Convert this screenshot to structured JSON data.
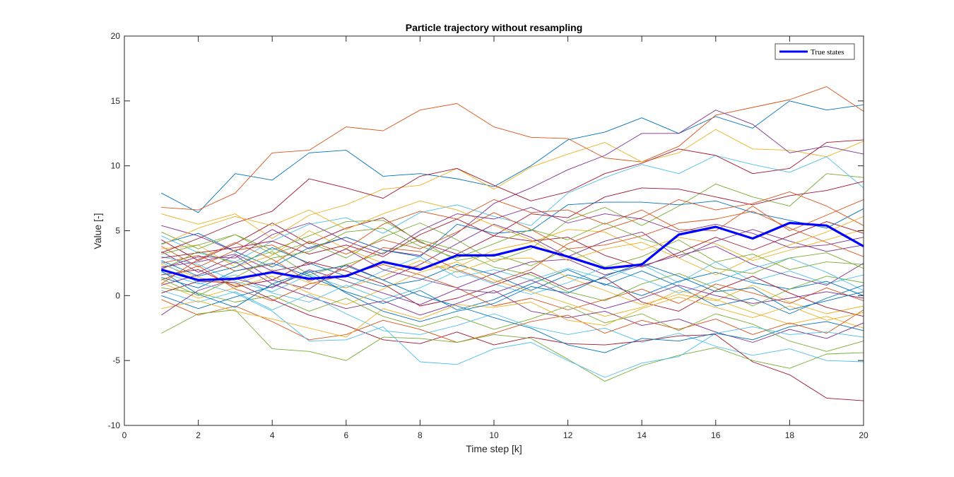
{
  "chart_data": {
    "type": "line",
    "title": "Particle trajectory without resampling",
    "xlabel": "Time step [k]",
    "ylabel": "Value [-]",
    "xlim": [
      0,
      20
    ],
    "ylim": [
      -10,
      20
    ],
    "xticks": [
      0,
      2,
      4,
      6,
      8,
      10,
      12,
      14,
      16,
      18,
      20
    ],
    "yticks": [
      -10,
      -5,
      0,
      5,
      10,
      15,
      20
    ],
    "grid": false,
    "legend_position": "top-right",
    "x": [
      1,
      2,
      3,
      4,
      5,
      6,
      7,
      8,
      9,
      10,
      11,
      12,
      13,
      14,
      15,
      16,
      17,
      18,
      19,
      20
    ],
    "highlight_series": {
      "name": "True states",
      "color": "#0000ff",
      "values": [
        2.0,
        1.2,
        1.3,
        1.8,
        1.3,
        1.5,
        2.6,
        2.0,
        3.1,
        3.1,
        3.8,
        3.0,
        2.1,
        2.4,
        4.7,
        5.3,
        4.4,
        5.6,
        5.4,
        3.8
      ]
    },
    "particle_colors": [
      "#0072bd",
      "#d95319",
      "#edb120",
      "#7e2f8e",
      "#77ac30",
      "#4dbeee",
      "#a2142f"
    ],
    "particles": [
      [
        7.9,
        6.4,
        9.4,
        8.9,
        11.0,
        11.2,
        9.2,
        9.4,
        9.0,
        8.4,
        10.0,
        12.0,
        12.6,
        13.7,
        12.5,
        13.8,
        12.9,
        15.0,
        14.3,
        14.7
      ],
      [
        6.8,
        6.6,
        7.9,
        11.0,
        11.2,
        13.0,
        12.7,
        14.3,
        14.8,
        13.0,
        12.2,
        12.1,
        10.6,
        10.3,
        11.5,
        13.9,
        14.5,
        15.1,
        16.1,
        14.2
      ],
      [
        6.3,
        5.5,
        6.3,
        4.4,
        6.2,
        7.0,
        8.2,
        8.5,
        9.8,
        8.2,
        9.9,
        10.9,
        11.8,
        10.3,
        11.0,
        12.8,
        11.3,
        11.2,
        10.7,
        11.9
      ],
      [
        5.4,
        4.6,
        3.4,
        5.1,
        3.6,
        4.5,
        3.5,
        3.1,
        4.8,
        7.1,
        8.3,
        9.7,
        10.8,
        12.5,
        12.5,
        14.3,
        13.2,
        11.0,
        11.5,
        10.9
      ],
      [
        4.9,
        3.6,
        4.7,
        3.2,
        4.1,
        2.9,
        4.5,
        5.6,
        4.3,
        2.6,
        3.6,
        5.8,
        6.8,
        5.4,
        6.9,
        8.6,
        7.6,
        6.9,
        9.4,
        9.1
      ],
      [
        4.6,
        3.3,
        2.6,
        4.2,
        5.5,
        6.0,
        4.8,
        6.4,
        7.0,
        6.1,
        5.4,
        7.9,
        9.1,
        10.1,
        9.4,
        10.8,
        10.1,
        9.5,
        10.7,
        8.3
      ],
      [
        4.3,
        2.7,
        4.0,
        5.6,
        4.0,
        5.2,
        6.0,
        4.1,
        3.2,
        4.6,
        6.3,
        6.0,
        7.6,
        8.3,
        8.2,
        7.6,
        7.0,
        7.7,
        8.1,
        8.8
      ],
      [
        4.0,
        4.8,
        3.4,
        2.2,
        3.7,
        4.5,
        3.5,
        3.0,
        5.5,
        4.8,
        5.0,
        7.0,
        7.2,
        7.2,
        7.0,
        7.3,
        6.4,
        5.8,
        5.2,
        6.7
      ],
      [
        3.8,
        2.2,
        3.5,
        3.9,
        2.4,
        3.6,
        5.5,
        6.5,
        5.9,
        7.4,
        6.4,
        6.6,
        5.5,
        6.6,
        5.1,
        5.0,
        6.9,
        5.0,
        6.2,
        7.4
      ],
      [
        3.6,
        3.9,
        2.2,
        3.1,
        5.0,
        3.6,
        2.5,
        2.2,
        2.2,
        3.5,
        4.1,
        5.1,
        4.9,
        3.5,
        4.5,
        4.0,
        2.7,
        3.5,
        4.3,
        5.1
      ],
      [
        3.4,
        1.8,
        3.1,
        1.2,
        0.5,
        2.4,
        1.2,
        2.4,
        4.0,
        5.5,
        4.5,
        3.0,
        4.2,
        4.9,
        2.9,
        4.2,
        5.1,
        4.2,
        3.4,
        3.9
      ],
      [
        3.2,
        3.9,
        4.7,
        3.5,
        4.6,
        5.7,
        5.8,
        4.2,
        2.7,
        3.2,
        2.3,
        3.6,
        2.2,
        3.0,
        4.3,
        2.6,
        3.2,
        2.0,
        2.6,
        2.4
      ],
      [
        3.0,
        2.4,
        1.1,
        0.3,
        1.6,
        0.6,
        1.9,
        3.0,
        1.4,
        2.0,
        1.2,
        2.1,
        1.3,
        2.4,
        1.0,
        2.6,
        1.1,
        1.9,
        0.9,
        1.6
      ],
      [
        2.9,
        3.3,
        3.7,
        4.2,
        3.2,
        3.9,
        3.0,
        4.7,
        5.9,
        4.6,
        4.2,
        4.5,
        3.1,
        2.2,
        3.3,
        4.5,
        3.5,
        4.6,
        5.7,
        4.8
      ],
      [
        2.7,
        1.5,
        2.2,
        3.7,
        2.5,
        1.5,
        0.7,
        1.2,
        2.4,
        1.6,
        0.4,
        1.6,
        0.9,
        0.0,
        1.1,
        1.8,
        1.0,
        0.5,
        1.1,
        0.0
      ],
      [
        2.5,
        3.1,
        1.9,
        2.4,
        4.2,
        3.2,
        4.3,
        3.6,
        4.9,
        6.4,
        5.1,
        3.6,
        3.9,
        4.6,
        5.6,
        5.9,
        6.5,
        5.2,
        4.1,
        3.0
      ],
      [
        2.4,
        1.4,
        0.8,
        2.0,
        1.0,
        0.6,
        1.5,
        2.7,
        1.8,
        2.8,
        2.9,
        1.4,
        0.4,
        -0.7,
        0.1,
        -0.4,
        0.8,
        -0.5,
        -1.4,
        -0.8
      ],
      [
        2.2,
        2.6,
        3.2,
        1.9,
        2.4,
        3.6,
        2.0,
        1.3,
        0.6,
        1.7,
        2.6,
        2.8,
        1.6,
        2.3,
        3.1,
        3.8,
        2.4,
        1.5,
        0.8,
        2.5
      ],
      [
        2.0,
        3.4,
        2.5,
        3.4,
        1.6,
        2.4,
        3.3,
        4.3,
        3.5,
        2.2,
        1.6,
        0.3,
        -0.4,
        0.9,
        1.7,
        0.6,
        -0.8,
        0.5,
        1.5,
        1.0
      ],
      [
        1.8,
        0.9,
        1.6,
        0.2,
        -0.5,
        0.8,
        -0.3,
        0.6,
        1.9,
        0.9,
        0.1,
        1.0,
        2.2,
        1.3,
        0.2,
        1.1,
        2.1,
        2.9,
        1.8,
        0.4
      ],
      [
        1.6,
        2.0,
        0.7,
        1.2,
        2.6,
        1.9,
        0.9,
        -0.8,
        -0.2,
        0.8,
        1.8,
        0.5,
        1.4,
        -0.5,
        -1.2,
        0.4,
        1.5,
        0.2,
        -0.9,
        -1.6
      ],
      [
        1.4,
        0.6,
        1.9,
        2.5,
        1.5,
        0.3,
        -0.6,
        0.4,
        -1.1,
        -0.3,
        0.9,
        2.0,
        0.8,
        1.9,
        0.7,
        -0.8,
        -0.2,
        -1.4,
        -0.2,
        0.8
      ],
      [
        1.2,
        2.3,
        0.5,
        -0.4,
        0.9,
        1.6,
        2.4,
        1.6,
        0.6,
        -0.8,
        -0.2,
        -1.1,
        -0.3,
        0.5,
        -0.6,
        0.9,
        0.2,
        -0.6,
        0.6,
        -0.4
      ],
      [
        1.0,
        -0.2,
        0.6,
        1.5,
        0.2,
        -0.7,
        0.5,
        1.8,
        2.6,
        1.2,
        0.3,
        -0.6,
        -1.6,
        -0.9,
        0.4,
        -0.3,
        -1.3,
        -2.2,
        -1.6,
        -2.5
      ],
      [
        0.8,
        1.6,
        2.6,
        0.9,
        -0.1,
        -1.0,
        -0.4,
        -1.5,
        -0.6,
        0.4,
        -1.2,
        -1.7,
        -1.2,
        -2.3,
        -1.8,
        -2.8,
        -3.6,
        -2.6,
        -3.3,
        -2.1
      ],
      [
        0.6,
        0.2,
        -0.5,
        0.0,
        -1.2,
        -0.2,
        -1.6,
        -2.4,
        -1.6,
        -2.6,
        -1.8,
        -0.8,
        -2.1,
        -1.4,
        -2.7,
        -1.4,
        -2.2,
        -3.5,
        -4.3,
        -3.5
      ],
      [
        0.4,
        -0.5,
        0.3,
        -1.1,
        0.1,
        -1.4,
        -2.7,
        -3.0,
        -2.3,
        -1.4,
        -2.4,
        -3.0,
        -2.5,
        -3.6,
        -2.9,
        -3.9,
        -4.6,
        -4.1,
        -5.0,
        -5.1
      ],
      [
        0.2,
        1.1,
        1.0,
        -0.3,
        -1.5,
        -2.3,
        -3.4,
        -3.7,
        -2.8,
        -3.8,
        -3.2,
        -3.7,
        -3.8,
        -3.5,
        -3.1,
        -3.0,
        -5.1,
        -6.1,
        -7.9,
        -8.1
      ],
      [
        0.0,
        -1.0,
        -0.1,
        0.7,
        1.8,
        2.3,
        1.2,
        0.0,
        -0.8,
        -1.7,
        -2.5,
        -3.8,
        -4.4,
        -3.3,
        -3.5,
        -2.9,
        -3.4,
        -2.4,
        -2.0,
        -2.7
      ],
      [
        -0.3,
        -1.5,
        -0.8,
        -2.0,
        -3.4,
        -3.0,
        -1.9,
        -2.6,
        -3.6,
        -2.9,
        -2.0,
        -1.5,
        -2.9,
        -1.9,
        -2.6,
        -1.8,
        -3.0,
        -2.1,
        -2.9,
        -1.1
      ],
      [
        -1.0,
        -0.4,
        -1.2,
        -1.8,
        -2.5,
        -3.2,
        -1.0,
        -1.8,
        -0.7,
        -0.9,
        -0.5,
        -1.9,
        -2.3,
        -1.0,
        -0.1,
        -0.9,
        -1.7,
        -0.8,
        -1.9,
        -1.3
      ],
      [
        -1.5,
        0.4,
        1.3,
        0.6,
        2.0,
        1.1,
        0.2,
        -0.7,
        0.5,
        0.2,
        1.2,
        0.0,
        -1.0,
        -0.2,
        0.8,
        0.0,
        -0.6,
        -0.2,
        0.3,
        -0.2
      ],
      [
        -2.9,
        -1.4,
        -1.1,
        -4.1,
        -4.3,
        -5.0,
        -3.2,
        -3.3,
        -3.6,
        -3.0,
        -3.3,
        -4.9,
        -6.6,
        -5.4,
        -4.6,
        -4.0,
        -5.0,
        -5.6,
        -4.5,
        -4.4
      ],
      [
        2.6,
        1.0,
        0.2,
        -1.2,
        -3.5,
        -3.4,
        -2.4,
        -5.1,
        -5.3,
        -4.1,
        -3.6,
        -5.0,
        -6.3,
        -5.2,
        -4.7,
        -2.9,
        -2.4,
        -3.0,
        -2.8,
        -3.2
      ],
      [
        3.3,
        4.4,
        5.6,
        6.5,
        9.0,
        8.3,
        7.5,
        9.2,
        9.8,
        8.5,
        7.3,
        8.0,
        9.4,
        10.2,
        11.3,
        10.8,
        9.4,
        9.8,
        11.8,
        12.0
      ],
      [
        1.9,
        0.1,
        -0.9,
        0.9,
        1.9,
        0.2,
        -1.2,
        -2.0,
        -1.2,
        -0.6,
        0.7,
        0.2,
        1.5,
        2.5,
        1.5,
        0.3,
        0.6,
        -1.1,
        -0.4,
        0.3
      ],
      [
        0.9,
        2.8,
        4.1,
        2.8,
        1.1,
        2.1,
        3.7,
        3.4,
        2.0,
        1.0,
        2.0,
        4.0,
        5.1,
        6.0,
        7.4,
        6.6,
        7.1,
        8.0,
        6.9,
        5.4
      ],
      [
        3.9,
        5.2,
        6.1,
        5.4,
        6.6,
        5.1,
        6.3,
        7.3,
        6.6,
        5.4,
        4.3,
        2.7,
        3.6,
        4.1,
        2.9,
        1.6,
        2.9,
        3.9,
        4.9,
        6.1
      ],
      [
        2.1,
        3.0,
        2.9,
        4.7,
        5.6,
        4.2,
        3.2,
        5.0,
        6.3,
        5.9,
        6.8,
        5.6,
        6.3,
        5.9,
        4.9,
        5.5,
        4.8,
        3.7,
        3.9,
        4.5
      ],
      [
        1.3,
        0.0,
        1.4,
        2.9,
        3.4,
        4.9,
        5.2,
        3.8,
        2.9,
        4.0,
        5.1,
        4.3,
        5.6,
        4.4,
        3.5,
        2.1,
        1.7,
        2.9,
        3.3,
        2.1
      ]
    ]
  }
}
